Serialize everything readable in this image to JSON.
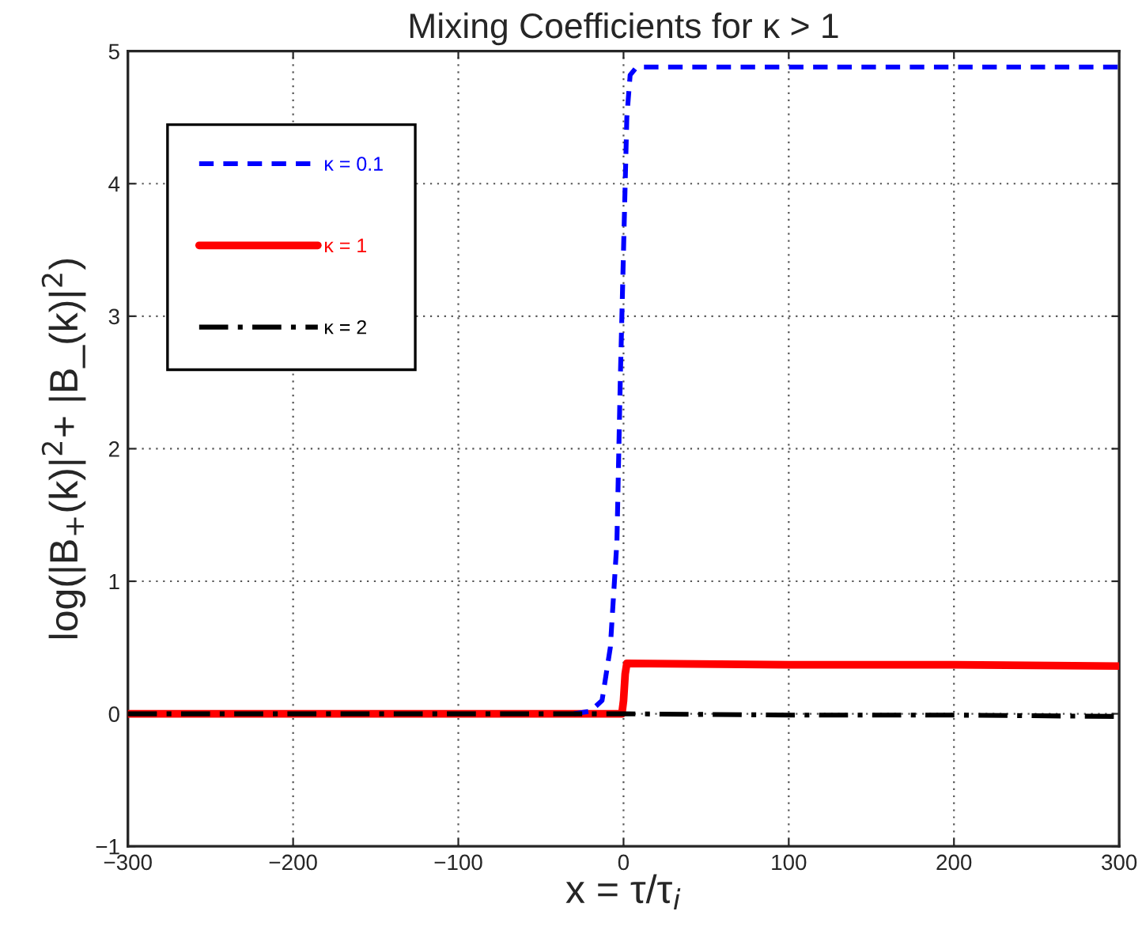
{
  "chart_data": {
    "type": "line",
    "title": "Mixing Coefficients for κ > 1",
    "xlabel": "x = τ/τ$_{i}$",
    "ylabel": "log(|B$_{+}$(k)|$^{2}$+ |B_(k)|$^{2}$)",
    "xlim": [
      -300,
      300
    ],
    "ylim": [
      -1,
      5
    ],
    "xticks": [
      -300,
      -200,
      -100,
      0,
      100,
      200,
      300
    ],
    "yticks": [
      -1,
      0,
      1,
      2,
      3,
      4,
      5
    ],
    "grid": true,
    "legend": "top left",
    "series": [
      {
        "name": "κ = 0.1",
        "color": "#0000ff",
        "line_style": "dashed",
        "x": [
          -30,
          -20,
          -13,
          -8,
          -4,
          -2,
          0,
          1,
          2,
          4,
          8,
          100,
          300
        ],
        "values": [
          0,
          0.02,
          0.1,
          0.5,
          1.3,
          2.5,
          3.5,
          4.0,
          4.5,
          4.82,
          4.88,
          4.88,
          4.88
        ]
      },
      {
        "name": "κ = 1",
        "color": "#ff0000",
        "line_style": "solid",
        "x": [
          -300,
          -100,
          -1,
          0,
          1,
          2,
          100,
          200,
          300
        ],
        "values": [
          0,
          0,
          0,
          0.1,
          0.3,
          0.38,
          0.37,
          0.37,
          0.36
        ]
      },
      {
        "name": "κ = 2",
        "color": "#000000",
        "line_style": "dashdot",
        "x": [
          -300,
          -100,
          0,
          100,
          200,
          300
        ],
        "values": [
          0,
          0,
          0,
          -0.01,
          -0.01,
          -0.02
        ]
      }
    ]
  }
}
